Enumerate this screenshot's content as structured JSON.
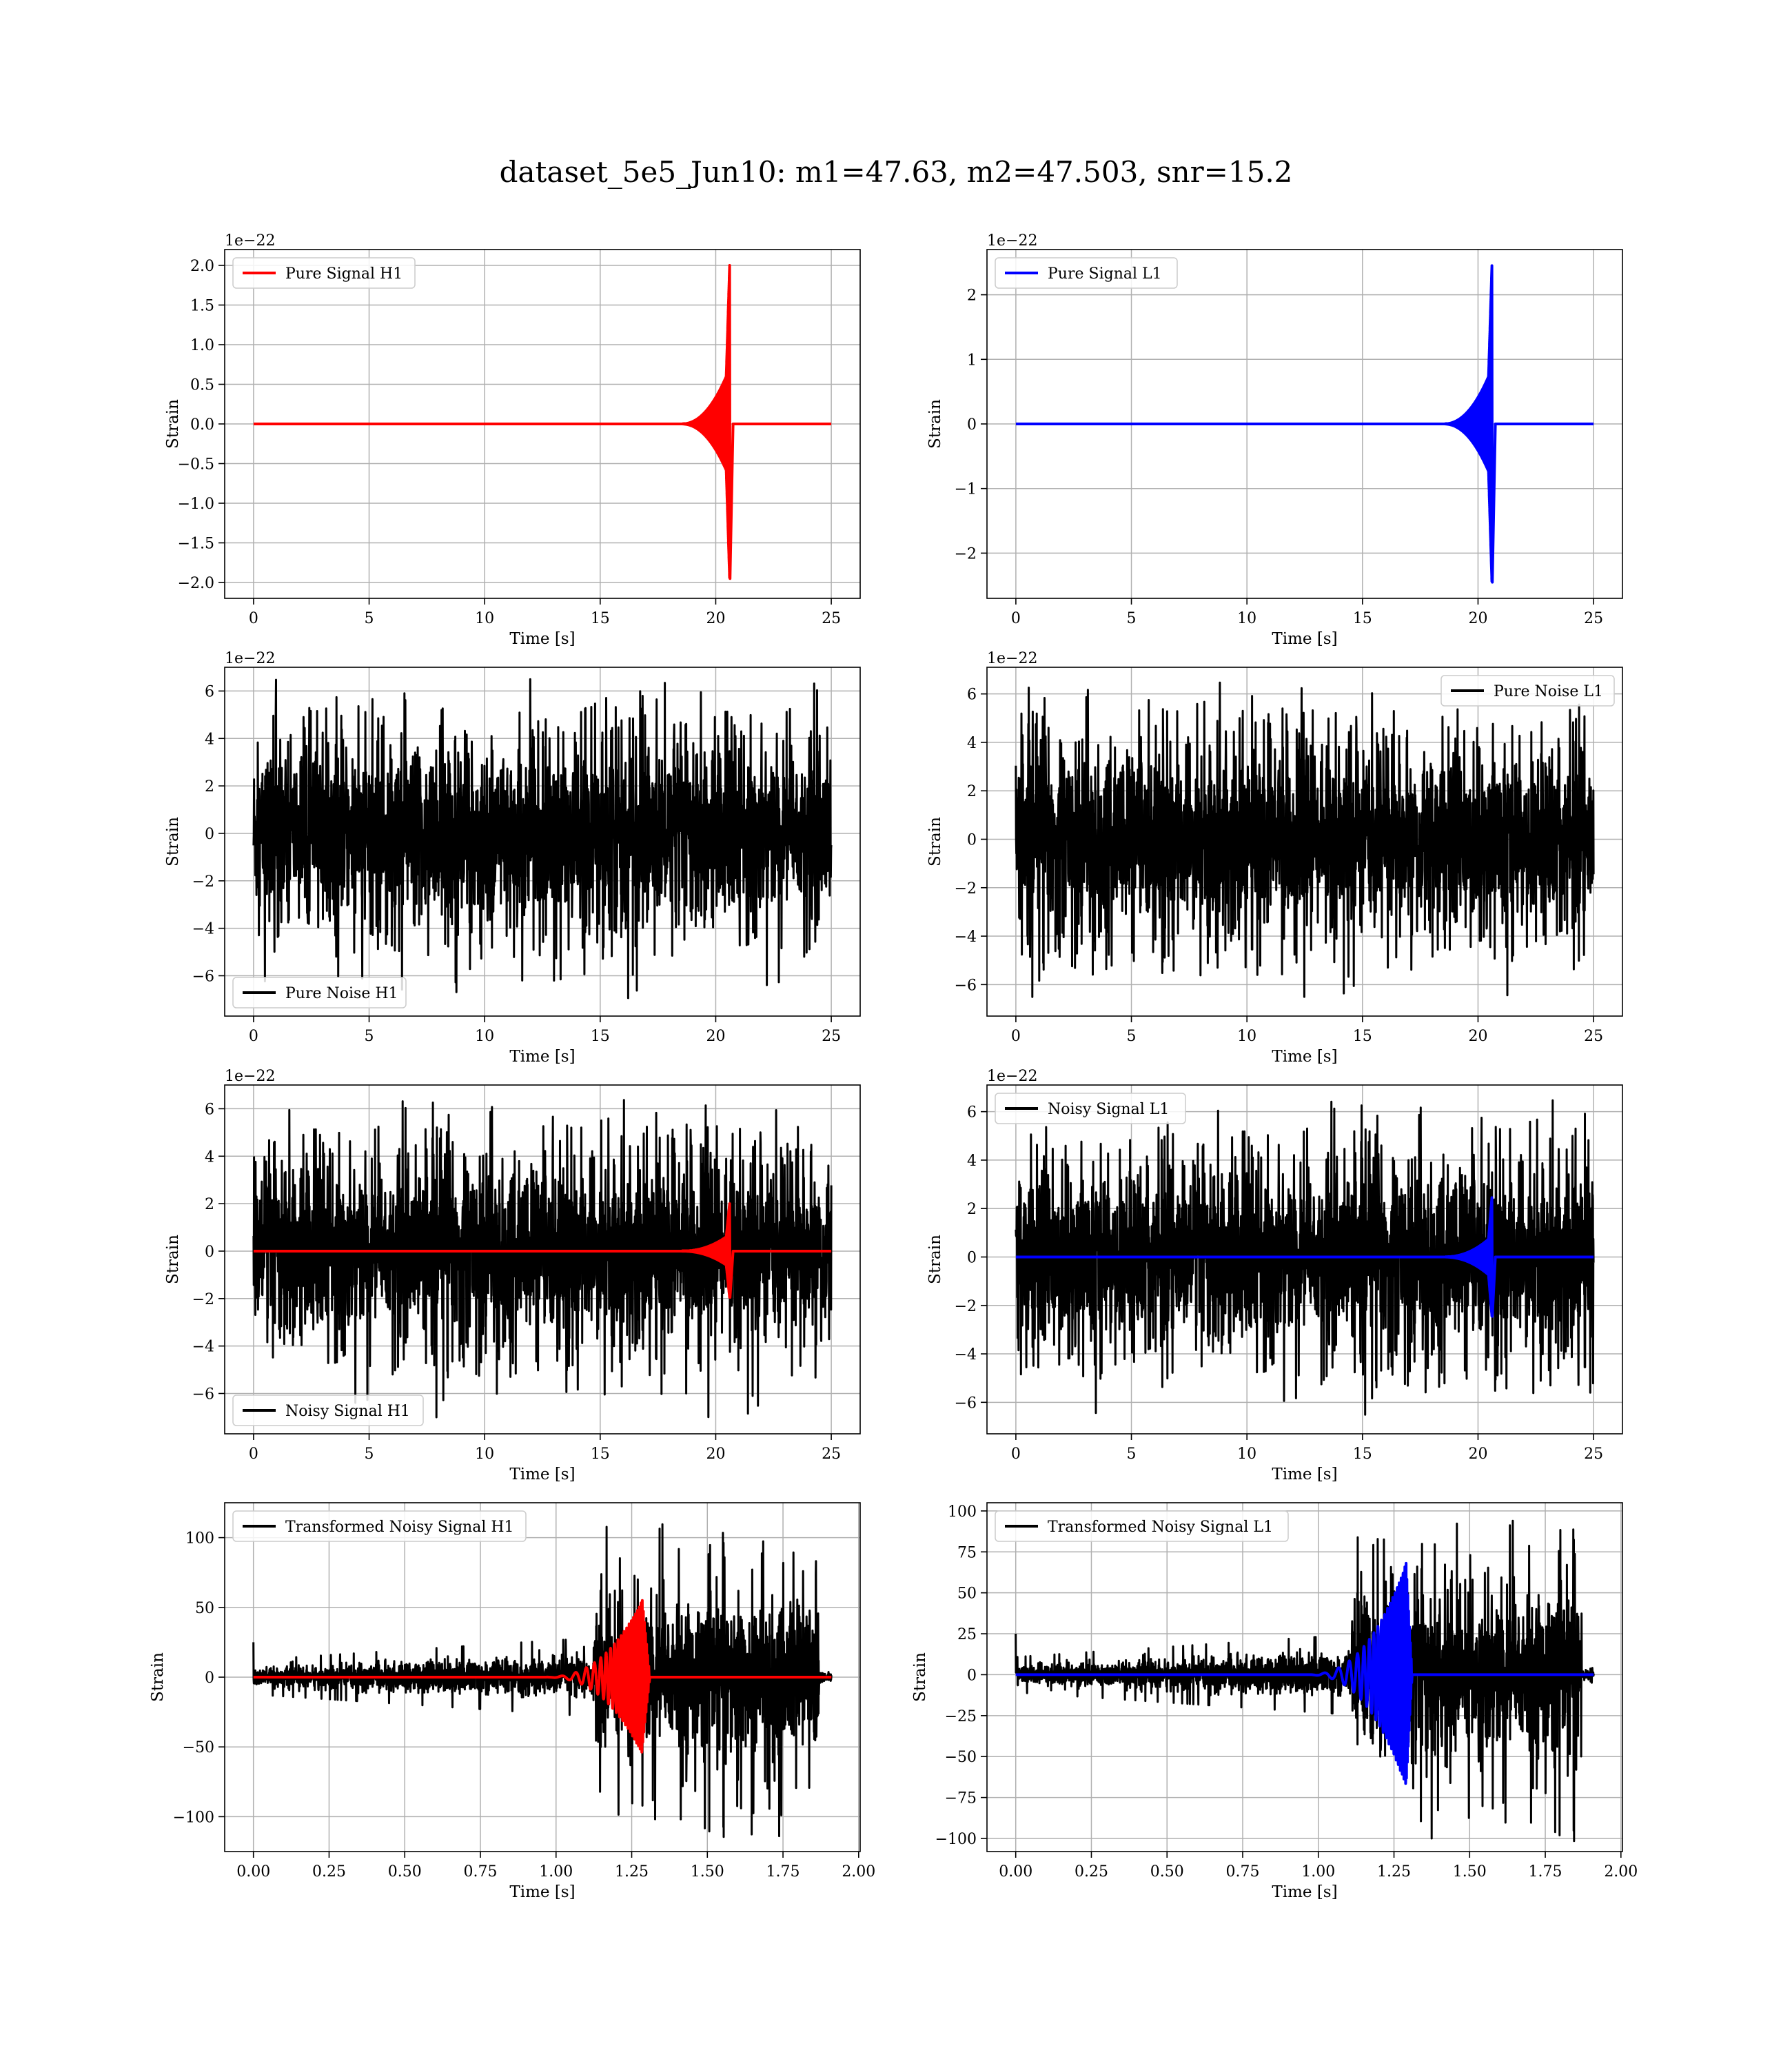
{
  "figure": {
    "title": "dataset_5e5_Jun10: m1=47.63, m2=47.503, snr=15.2"
  },
  "colors": {
    "h1_signal": "#ff0000",
    "l1_signal": "#0000ff",
    "noise": "#000000",
    "grid": "#b0b0b0"
  },
  "chart_data": [
    {
      "type": "line",
      "id": "pure_signal_h1",
      "xlabel": "Time [s]",
      "ylabel": "Strain",
      "offset_text": "1e−22",
      "xlim": [
        -1.25,
        26.25
      ],
      "ylim": [
        -2.2,
        2.2
      ],
      "xticks": [
        0,
        5,
        10,
        15,
        20,
        25
      ],
      "xtick_labels": [
        "0",
        "5",
        "10",
        "15",
        "20",
        "25"
      ],
      "yticks": [
        2.0,
        1.5,
        1.0,
        0.5,
        0.0,
        -0.5,
        -1.0,
        -1.5,
        -2.0
      ],
      "ytick_labels": [
        "2.0",
        "1.5",
        "1.0",
        "0.5",
        "0.0",
        "−0.5",
        "−1.0",
        "−1.5",
        "−2.0"
      ],
      "grid": true,
      "legend_loc": "upper left",
      "series": [
        {
          "name": "Pure Signal H1",
          "kind": "chirp",
          "color": "#ff0000",
          "x_start": 0,
          "x_end": 25,
          "onset": 18.5,
          "peak_time": 20.6,
          "peak_amplitude": 2.0,
          "negative_peak": -1.95,
          "ring_end": 20.75
        }
      ]
    },
    {
      "type": "line",
      "id": "pure_signal_l1",
      "xlabel": "Time [s]",
      "ylabel": "Strain",
      "offset_text": "1e−22",
      "xlim": [
        -1.25,
        26.25
      ],
      "ylim": [
        -2.7,
        2.7
      ],
      "xticks": [
        0,
        5,
        10,
        15,
        20,
        25
      ],
      "xtick_labels": [
        "0",
        "5",
        "10",
        "15",
        "20",
        "25"
      ],
      "yticks": [
        2,
        1,
        0,
        -1,
        -2
      ],
      "ytick_labels": [
        "2",
        "1",
        "0",
        "−1",
        "−2"
      ],
      "grid": true,
      "legend_loc": "upper left",
      "series": [
        {
          "name": "Pure Signal L1",
          "kind": "chirp",
          "color": "#0000ff",
          "x_start": 0,
          "x_end": 25,
          "onset": 18.5,
          "peak_time": 20.6,
          "peak_amplitude": 2.45,
          "negative_peak": -2.45,
          "ring_end": 20.75
        }
      ]
    },
    {
      "type": "line",
      "id": "pure_noise_h1",
      "xlabel": "Time [s]",
      "ylabel": "Strain",
      "offset_text": "1e−22",
      "xlim": [
        -1.25,
        26.25
      ],
      "ylim": [
        -7.7,
        7.0
      ],
      "xticks": [
        0,
        5,
        10,
        15,
        20,
        25
      ],
      "xtick_labels": [
        "0",
        "5",
        "10",
        "15",
        "20",
        "25"
      ],
      "yticks": [
        6,
        4,
        2,
        0,
        -2,
        -4,
        -6
      ],
      "ytick_labels": [
        "6",
        "4",
        "2",
        "0",
        "−2",
        "−4",
        "−6"
      ],
      "grid": true,
      "legend_loc": "lower left",
      "series": [
        {
          "name": "Pure Noise H1",
          "kind": "noise",
          "color": "#000000",
          "x_start": 0,
          "x_end": 25,
          "band_low": -3.6,
          "band_high": 3.6,
          "max": 6.5,
          "min": -7.1
        }
      ]
    },
    {
      "type": "line",
      "id": "pure_noise_l1",
      "xlabel": "Time [s]",
      "ylabel": "Strain",
      "offset_text": "1e−22",
      "xlim": [
        -1.25,
        26.25
      ],
      "ylim": [
        -7.3,
        7.1
      ],
      "xticks": [
        0,
        5,
        10,
        15,
        20,
        25
      ],
      "xtick_labels": [
        "0",
        "5",
        "10",
        "15",
        "20",
        "25"
      ],
      "yticks": [
        6,
        4,
        2,
        0,
        -2,
        -4,
        -6
      ],
      "ytick_labels": [
        "6",
        "4",
        "2",
        "0",
        "−2",
        "−4",
        "−6"
      ],
      "grid": true,
      "legend_loc": "upper right",
      "series": [
        {
          "name": "Pure Noise L1",
          "kind": "noise",
          "color": "#000000",
          "x_start": 0,
          "x_end": 25,
          "band_low": -3.6,
          "band_high": 3.6,
          "max": 6.6,
          "min": -6.6
        }
      ]
    },
    {
      "type": "line",
      "id": "noisy_signal_h1",
      "xlabel": "Time [s]",
      "ylabel": "Strain",
      "offset_text": "1e−22",
      "xlim": [
        -1.25,
        26.25
      ],
      "ylim": [
        -7.7,
        7.0
      ],
      "xticks": [
        0,
        5,
        10,
        15,
        20,
        25
      ],
      "xtick_labels": [
        "0",
        "5",
        "10",
        "15",
        "20",
        "25"
      ],
      "yticks": [
        6,
        4,
        2,
        0,
        -2,
        -4,
        -6
      ],
      "ytick_labels": [
        "6",
        "4",
        "2",
        "0",
        "−2",
        "−4",
        "−6"
      ],
      "grid": true,
      "legend_loc": "lower left",
      "series": [
        {
          "name": "Noisy Signal H1",
          "kind": "noise",
          "color": "#000000",
          "x_start": 0,
          "x_end": 25,
          "band_low": -3.6,
          "band_high": 3.6,
          "max": 6.5,
          "min": -7.1
        },
        {
          "name": "",
          "kind": "chirp",
          "color": "#ff0000",
          "x_start": 0,
          "x_end": 25,
          "onset": 18.5,
          "peak_time": 20.6,
          "peak_amplitude": 2.0,
          "negative_peak": -1.95,
          "ring_end": 20.75
        }
      ]
    },
    {
      "type": "line",
      "id": "noisy_signal_l1",
      "xlabel": "Time [s]",
      "ylabel": "Strain",
      "offset_text": "1e−22",
      "xlim": [
        -1.25,
        26.25
      ],
      "ylim": [
        -7.3,
        7.1
      ],
      "xticks": [
        0,
        5,
        10,
        15,
        20,
        25
      ],
      "xtick_labels": [
        "0",
        "5",
        "10",
        "15",
        "20",
        "25"
      ],
      "yticks": [
        6,
        4,
        2,
        0,
        -2,
        -4,
        -6
      ],
      "ytick_labels": [
        "6",
        "4",
        "2",
        "0",
        "−2",
        "−4",
        "−6"
      ],
      "grid": true,
      "legend_loc": "upper left",
      "series": [
        {
          "name": "Noisy Signal L1",
          "kind": "noise",
          "color": "#000000",
          "x_start": 0,
          "x_end": 25,
          "band_low": -3.6,
          "band_high": 3.6,
          "max": 6.6,
          "min": -6.6
        },
        {
          "name": "",
          "kind": "chirp",
          "color": "#0000ff",
          "x_start": 0,
          "x_end": 25,
          "onset": 18.5,
          "peak_time": 20.6,
          "peak_amplitude": 2.45,
          "negative_peak": -2.45,
          "ring_end": 20.75
        }
      ]
    },
    {
      "type": "line",
      "id": "transformed_noisy_signal_h1",
      "xlabel": "Time [s]",
      "ylabel": "Strain",
      "offset_text": "",
      "xlim": [
        -0.095,
        2.005
      ],
      "ylim": [
        -125,
        125
      ],
      "xticks": [
        0.0,
        0.25,
        0.5,
        0.75,
        1.0,
        1.25,
        1.5,
        1.75,
        2.0
      ],
      "xtick_labels": [
        "0.00",
        "0.25",
        "0.50",
        "0.75",
        "1.00",
        "1.25",
        "1.50",
        "1.75",
        "2.00"
      ],
      "yticks": [
        100,
        50,
        0,
        -50,
        -100
      ],
      "ytick_labels": [
        "100",
        "50",
        "0",
        "−50",
        "−100"
      ],
      "grid": true,
      "legend_loc": "upper left",
      "series": [
        {
          "name": "Transformed Noisy Signal H1",
          "kind": "whitened",
          "color": "#000000",
          "x_start": 0.0,
          "x_end": 1.91,
          "jump_time": 1.12,
          "pre_amp": 8,
          "post_amp": 45,
          "max": 112,
          "min": -115,
          "drop_time": 1.87
        },
        {
          "name": "",
          "kind": "whitened_chirp",
          "color": "#ff0000",
          "x_start": 0.0,
          "x_end": 1.91,
          "onset": 0.95,
          "peak_time": 1.285,
          "peak_amplitude": 55,
          "negative_peak": -50,
          "ring_end": 1.31
        }
      ]
    },
    {
      "type": "line",
      "id": "transformed_noisy_signal_l1",
      "xlabel": "Time [s]",
      "ylabel": "Strain",
      "offset_text": "",
      "xlim": [
        -0.095,
        2.005
      ],
      "ylim": [
        -108,
        105
      ],
      "xticks": [
        0.0,
        0.25,
        0.5,
        0.75,
        1.0,
        1.25,
        1.5,
        1.75,
        2.0
      ],
      "xtick_labels": [
        "0.00",
        "0.25",
        "0.50",
        "0.75",
        "1.00",
        "1.25",
        "1.50",
        "1.75",
        "2.00"
      ],
      "yticks": [
        100,
        75,
        50,
        25,
        0,
        -25,
        -50,
        -75,
        -100
      ],
      "ytick_labels": [
        "100",
        "75",
        "50",
        "25",
        "0",
        "−25",
        "−50",
        "−75",
        "−100"
      ],
      "grid": true,
      "legend_loc": "upper left",
      "series": [
        {
          "name": "Transformed Noisy Signal L1",
          "kind": "whitened",
          "color": "#000000",
          "x_start": 0.0,
          "x_end": 1.91,
          "jump_time": 1.11,
          "pre_amp": 7,
          "post_amp": 42,
          "max": 96,
          "min": -102,
          "drop_time": 1.87
        },
        {
          "name": "",
          "kind": "whitened_chirp",
          "color": "#0000ff",
          "x_start": 0.0,
          "x_end": 1.91,
          "onset": 0.95,
          "peak_time": 1.29,
          "peak_amplitude": 68,
          "negative_peak": -68,
          "ring_end": 1.31
        }
      ]
    }
  ]
}
